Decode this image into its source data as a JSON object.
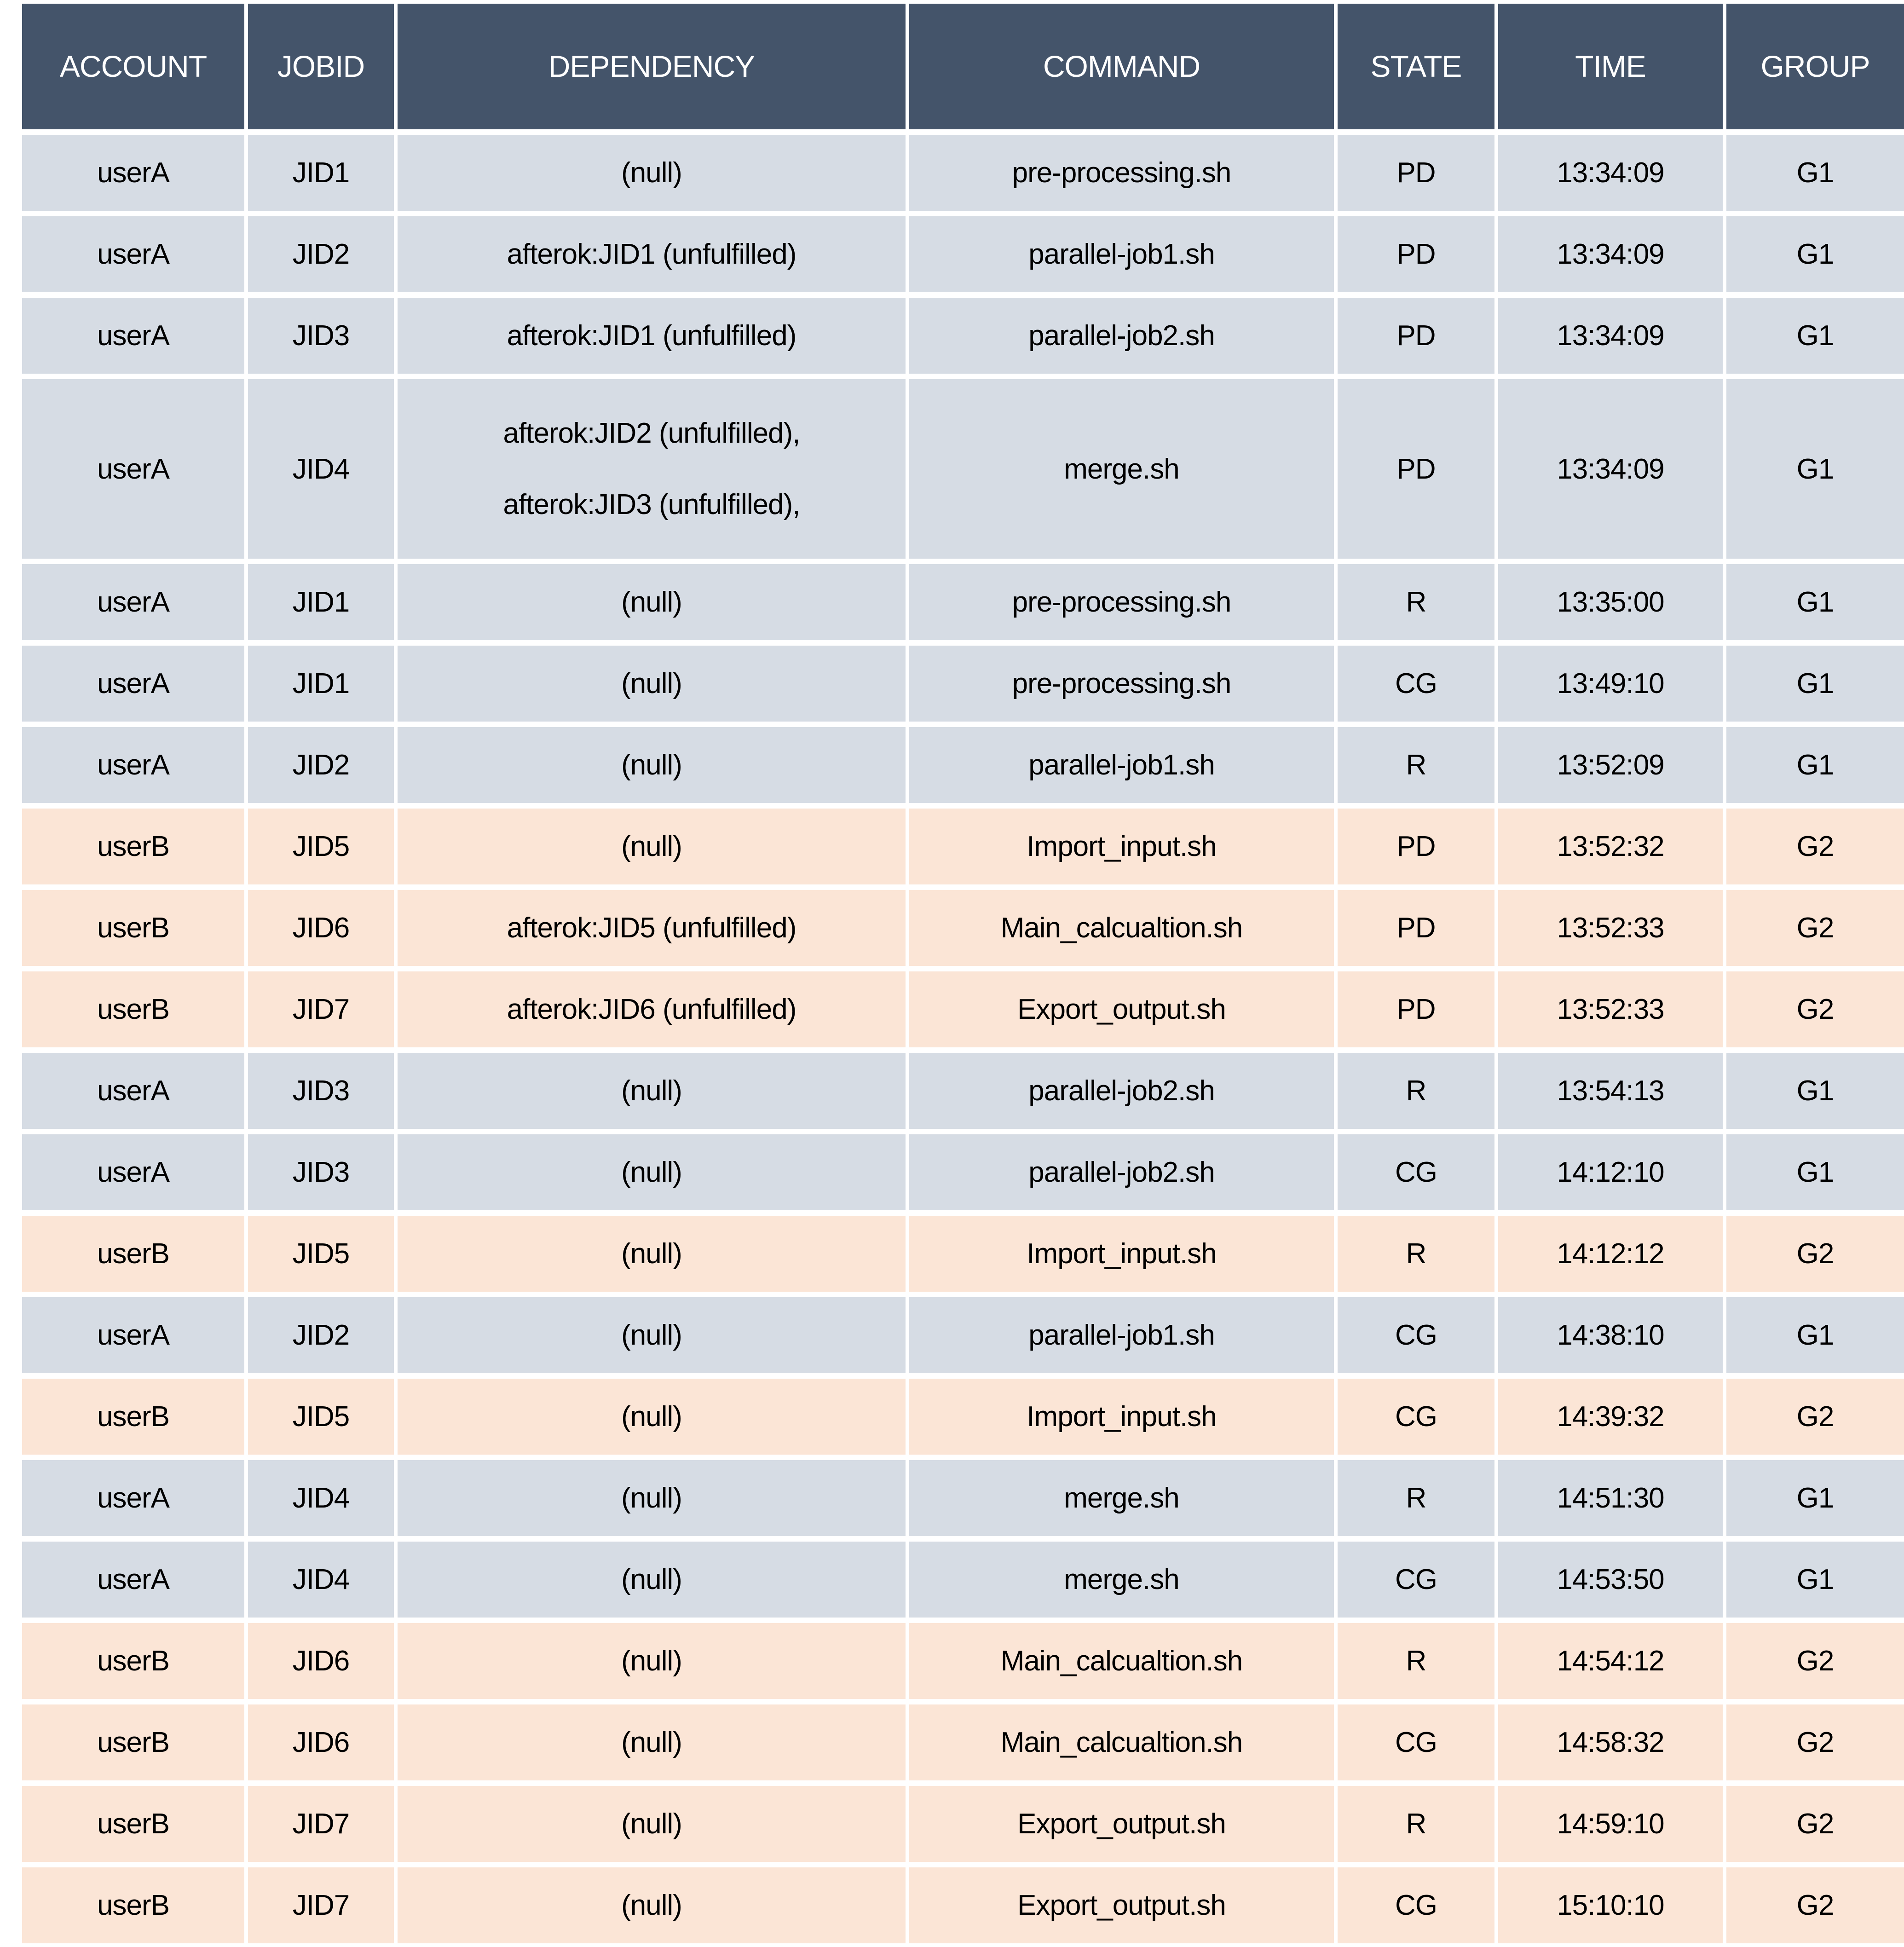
{
  "colors": {
    "background": "#FFFFFF",
    "header_bg": "#44546A",
    "header_text": "#FFFFFF",
    "row_blue": "#D6DCE4",
    "row_peach": "#FBE5D6",
    "text": "#000000"
  },
  "table": {
    "columns": [
      {
        "key": "account",
        "label": "ACCOUNT"
      },
      {
        "key": "jobid",
        "label": "JOBID"
      },
      {
        "key": "dependency",
        "label": "DEPENDENCY"
      },
      {
        "key": "command",
        "label": "COMMAND"
      },
      {
        "key": "state",
        "label": "STATE"
      },
      {
        "key": "time",
        "label": "TIME"
      },
      {
        "key": "group",
        "label": "GROUP"
      }
    ],
    "rows": [
      {
        "account": "userA",
        "jobid": "JID1",
        "dependency": "(null)",
        "command": "pre-processing.sh",
        "state": "PD",
        "time": "13:34:09",
        "group": "G1"
      },
      {
        "account": "userA",
        "jobid": "JID2",
        "dependency": "afterok:JID1 (unfulfilled)",
        "command": "parallel-job1.sh",
        "state": "PD",
        "time": "13:34:09",
        "group": "G1"
      },
      {
        "account": "userA",
        "jobid": "JID3",
        "dependency": "afterok:JID1 (unfulfilled)",
        "command": "parallel-job2.sh",
        "state": "PD",
        "time": "13:34:09",
        "group": "G1"
      },
      {
        "account": "userA",
        "jobid": "JID4",
        "dependency": "afterok:JID2 (unfulfilled),\nafterok:JID3 (unfulfilled),",
        "command": "merge.sh",
        "state": "PD",
        "time": "13:34:09",
        "group": "G1"
      },
      {
        "account": "userA",
        "jobid": "JID1",
        "dependency": "(null)",
        "command": "pre-processing.sh",
        "state": "R",
        "time": "13:35:00",
        "group": "G1"
      },
      {
        "account": "userA",
        "jobid": "JID1",
        "dependency": "(null)",
        "command": "pre-processing.sh",
        "state": "CG",
        "time": "13:49:10",
        "group": "G1"
      },
      {
        "account": "userA",
        "jobid": "JID2",
        "dependency": "(null)",
        "command": "parallel-job1.sh",
        "state": "R",
        "time": "13:52:09",
        "group": "G1"
      },
      {
        "account": "userB",
        "jobid": "JID5",
        "dependency": "(null)",
        "command": "Import_input.sh",
        "state": "PD",
        "time": "13:52:32",
        "group": "G2"
      },
      {
        "account": "userB",
        "jobid": "JID6",
        "dependency": "afterok:JID5 (unfulfilled)",
        "command": "Main_calcualtion.sh",
        "state": "PD",
        "time": "13:52:33",
        "group": "G2"
      },
      {
        "account": "userB",
        "jobid": "JID7",
        "dependency": "afterok:JID6 (unfulfilled)",
        "command": "Export_output.sh",
        "state": "PD",
        "time": "13:52:33",
        "group": "G2"
      },
      {
        "account": "userA",
        "jobid": "JID3",
        "dependency": "(null)",
        "command": "parallel-job2.sh",
        "state": "R",
        "time": "13:54:13",
        "group": "G1"
      },
      {
        "account": "userA",
        "jobid": "JID3",
        "dependency": "(null)",
        "command": "parallel-job2.sh",
        "state": "CG",
        "time": "14:12:10",
        "group": "G1"
      },
      {
        "account": "userB",
        "jobid": "JID5",
        "dependency": "(null)",
        "command": "Import_input.sh",
        "state": "R",
        "time": "14:12:12",
        "group": "G2"
      },
      {
        "account": "userA",
        "jobid": "JID2",
        "dependency": "(null)",
        "command": "parallel-job1.sh",
        "state": "CG",
        "time": "14:38:10",
        "group": "G1"
      },
      {
        "account": "userB",
        "jobid": "JID5",
        "dependency": "(null)",
        "command": "Import_input.sh",
        "state": "CG",
        "time": "14:39:32",
        "group": "G2"
      },
      {
        "account": "userA",
        "jobid": "JID4",
        "dependency": "(null)",
        "command": "merge.sh",
        "state": "R",
        "time": "14:51:30",
        "group": "G1"
      },
      {
        "account": "userA",
        "jobid": "JID4",
        "dependency": "(null)",
        "command": "merge.sh",
        "state": "CG",
        "time": "14:53:50",
        "group": "G1"
      },
      {
        "account": "userB",
        "jobid": "JID6",
        "dependency": "(null)",
        "command": "Main_calcualtion.sh",
        "state": "R",
        "time": "14:54:12",
        "group": "G2"
      },
      {
        "account": "userB",
        "jobid": "JID6",
        "dependency": "(null)",
        "command": "Main_calcualtion.sh",
        "state": "CG",
        "time": "14:58:32",
        "group": "G2"
      },
      {
        "account": "userB",
        "jobid": "JID7",
        "dependency": "(null)",
        "command": "Export_output.sh",
        "state": "R",
        "time": "14:59:10",
        "group": "G2"
      },
      {
        "account": "userB",
        "jobid": "JID7",
        "dependency": "(null)",
        "command": "Export_output.sh",
        "state": "CG",
        "time": "15:10:10",
        "group": "G2"
      }
    ]
  }
}
